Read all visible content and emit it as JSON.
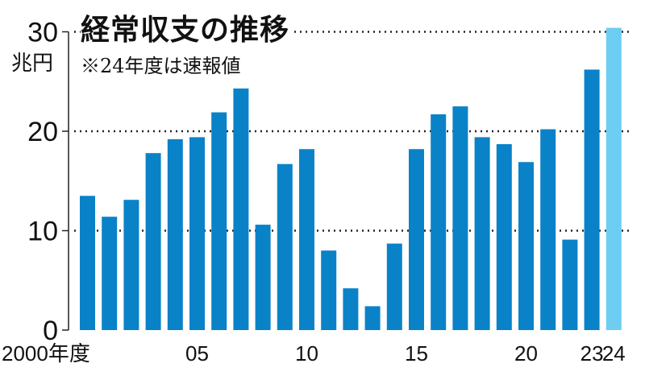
{
  "chart_data": {
    "type": "bar",
    "title": "経常収支の推移",
    "subtitle": "※24年度は速報値",
    "ylabel": "兆円",
    "xlabel": "",
    "ylim": [
      0,
      30
    ],
    "yticks": [
      0,
      10,
      20,
      30
    ],
    "ytick_labels": [
      "0",
      "10",
      "20",
      "30"
    ],
    "grid": "dotted at 10, 20, 30",
    "categories": [
      "2000",
      "2001",
      "2002",
      "2003",
      "2004",
      "2005",
      "2006",
      "2007",
      "2008",
      "2009",
      "2010",
      "2011",
      "2012",
      "2013",
      "2014",
      "2015",
      "2016",
      "2017",
      "2018",
      "2019",
      "2020",
      "2021",
      "2022",
      "2023",
      "2024"
    ],
    "values": [
      13.5,
      11.4,
      13.1,
      17.8,
      19.2,
      19.4,
      21.9,
      24.3,
      10.6,
      16.7,
      18.2,
      8.0,
      4.2,
      2.4,
      8.7,
      18.2,
      21.7,
      22.5,
      19.4,
      18.7,
      16.9,
      20.2,
      9.1,
      26.2,
      30.4
    ],
    "xtick_labels": [
      {
        "index": 0,
        "label": "2000年度"
      },
      {
        "index": 5,
        "label": "05"
      },
      {
        "index": 10,
        "label": "10"
      },
      {
        "index": 15,
        "label": "15"
      },
      {
        "index": 20,
        "label": "20"
      },
      {
        "index": 23,
        "label": "23"
      },
      {
        "index": 24,
        "label": "24"
      }
    ],
    "colors": {
      "bar": "#0a82c8",
      "preliminary": "#6dcdf2",
      "axis": "#222222"
    }
  }
}
